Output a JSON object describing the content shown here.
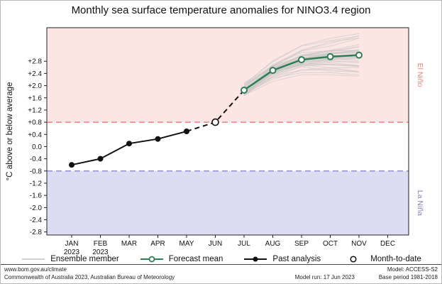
{
  "title": "Monthly sea surface temperature anomalies for NINO3.4 region",
  "chart_data": {
    "type": "line",
    "title": "Monthly sea surface temperature anomalies for NINO3.4 region",
    "ylabel": "°C above or below average",
    "categories": [
      "JAN",
      "FEB",
      "MAR",
      "APR",
      "MAY",
      "JUN",
      "JUL",
      "AUG",
      "SEP",
      "OCT",
      "NOV",
      "DEC"
    ],
    "year_row": [
      "2023",
      "2023",
      "",
      "",
      "",
      "",
      "",
      "",
      "",
      "",
      "",
      ""
    ],
    "ylim": [
      -2.9,
      3.9
    ],
    "ytick_values": [
      2.8,
      2.4,
      2.0,
      1.6,
      1.2,
      0.8,
      0.4,
      0.0,
      -0.4,
      -0.8,
      -1.2,
      -1.6,
      -2.0,
      -2.4,
      -2.8
    ],
    "ytick_labels": [
      "+2.8",
      "+2.4",
      "+2.0",
      "+1.6",
      "+1.2",
      "+0.8",
      "+0.4",
      "0.0",
      "-0.4",
      "-0.8",
      "-1.2",
      "-1.6",
      "-2.0",
      "-2.4",
      "-2.8"
    ],
    "thresholds": {
      "el_nino": 0.8,
      "la_nina": -0.8
    },
    "regions": {
      "el_nino_label": "El Niño",
      "la_nina_label": "La Niña"
    },
    "series": {
      "past_analysis": {
        "months": [
          "JAN",
          "FEB",
          "MAR",
          "APR",
          "MAY"
        ],
        "values": [
          -0.6,
          -0.4,
          0.1,
          0.25,
          0.5
        ]
      },
      "month_to_date": {
        "month": "JUN",
        "value": 0.8
      },
      "forecast_mean": {
        "months": [
          "JUL",
          "AUG",
          "SEP",
          "OCT",
          "NOV"
        ],
        "values": [
          1.85,
          2.5,
          2.85,
          2.95,
          3.0
        ]
      },
      "ensemble": {
        "count": 40,
        "seed": 11,
        "base_offset": 0.4,
        "drift": 1.3,
        "noise": 0.12
      }
    },
    "legend_position": "bottom",
    "grid": false
  },
  "legend": [
    {
      "id": "ensemble-member",
      "label": "Ensemble member"
    },
    {
      "id": "forecast-mean",
      "label": "Forecast mean"
    },
    {
      "id": "past-analysis",
      "label": "Past analysis"
    },
    {
      "id": "month-to-date",
      "label": "Month-to-date"
    }
  ],
  "footer": {
    "left_line1": "www.bom.gov.au/climate",
    "left_line2": "Commonwealth of Australia 2023, Australian Bureau of Meteorology",
    "right_line1": "Model: ACCESS-S2",
    "right_line2a": "Model run: 17 Jun 2023",
    "right_line2b": "Base period 1981-2018"
  },
  "colors": {
    "el_nino_bg": "#fbe6e3",
    "la_nina_bg": "#dcdcf3",
    "el_nino_line": "#f27f7f",
    "la_nina_line": "#8888cf",
    "el_nino_text": "#e9837a",
    "la_nina_text": "#8a7ab8",
    "forecast": "#2e7d54",
    "past": "#111111",
    "ensemble": "#c7c7c7",
    "axis": "#222222"
  }
}
